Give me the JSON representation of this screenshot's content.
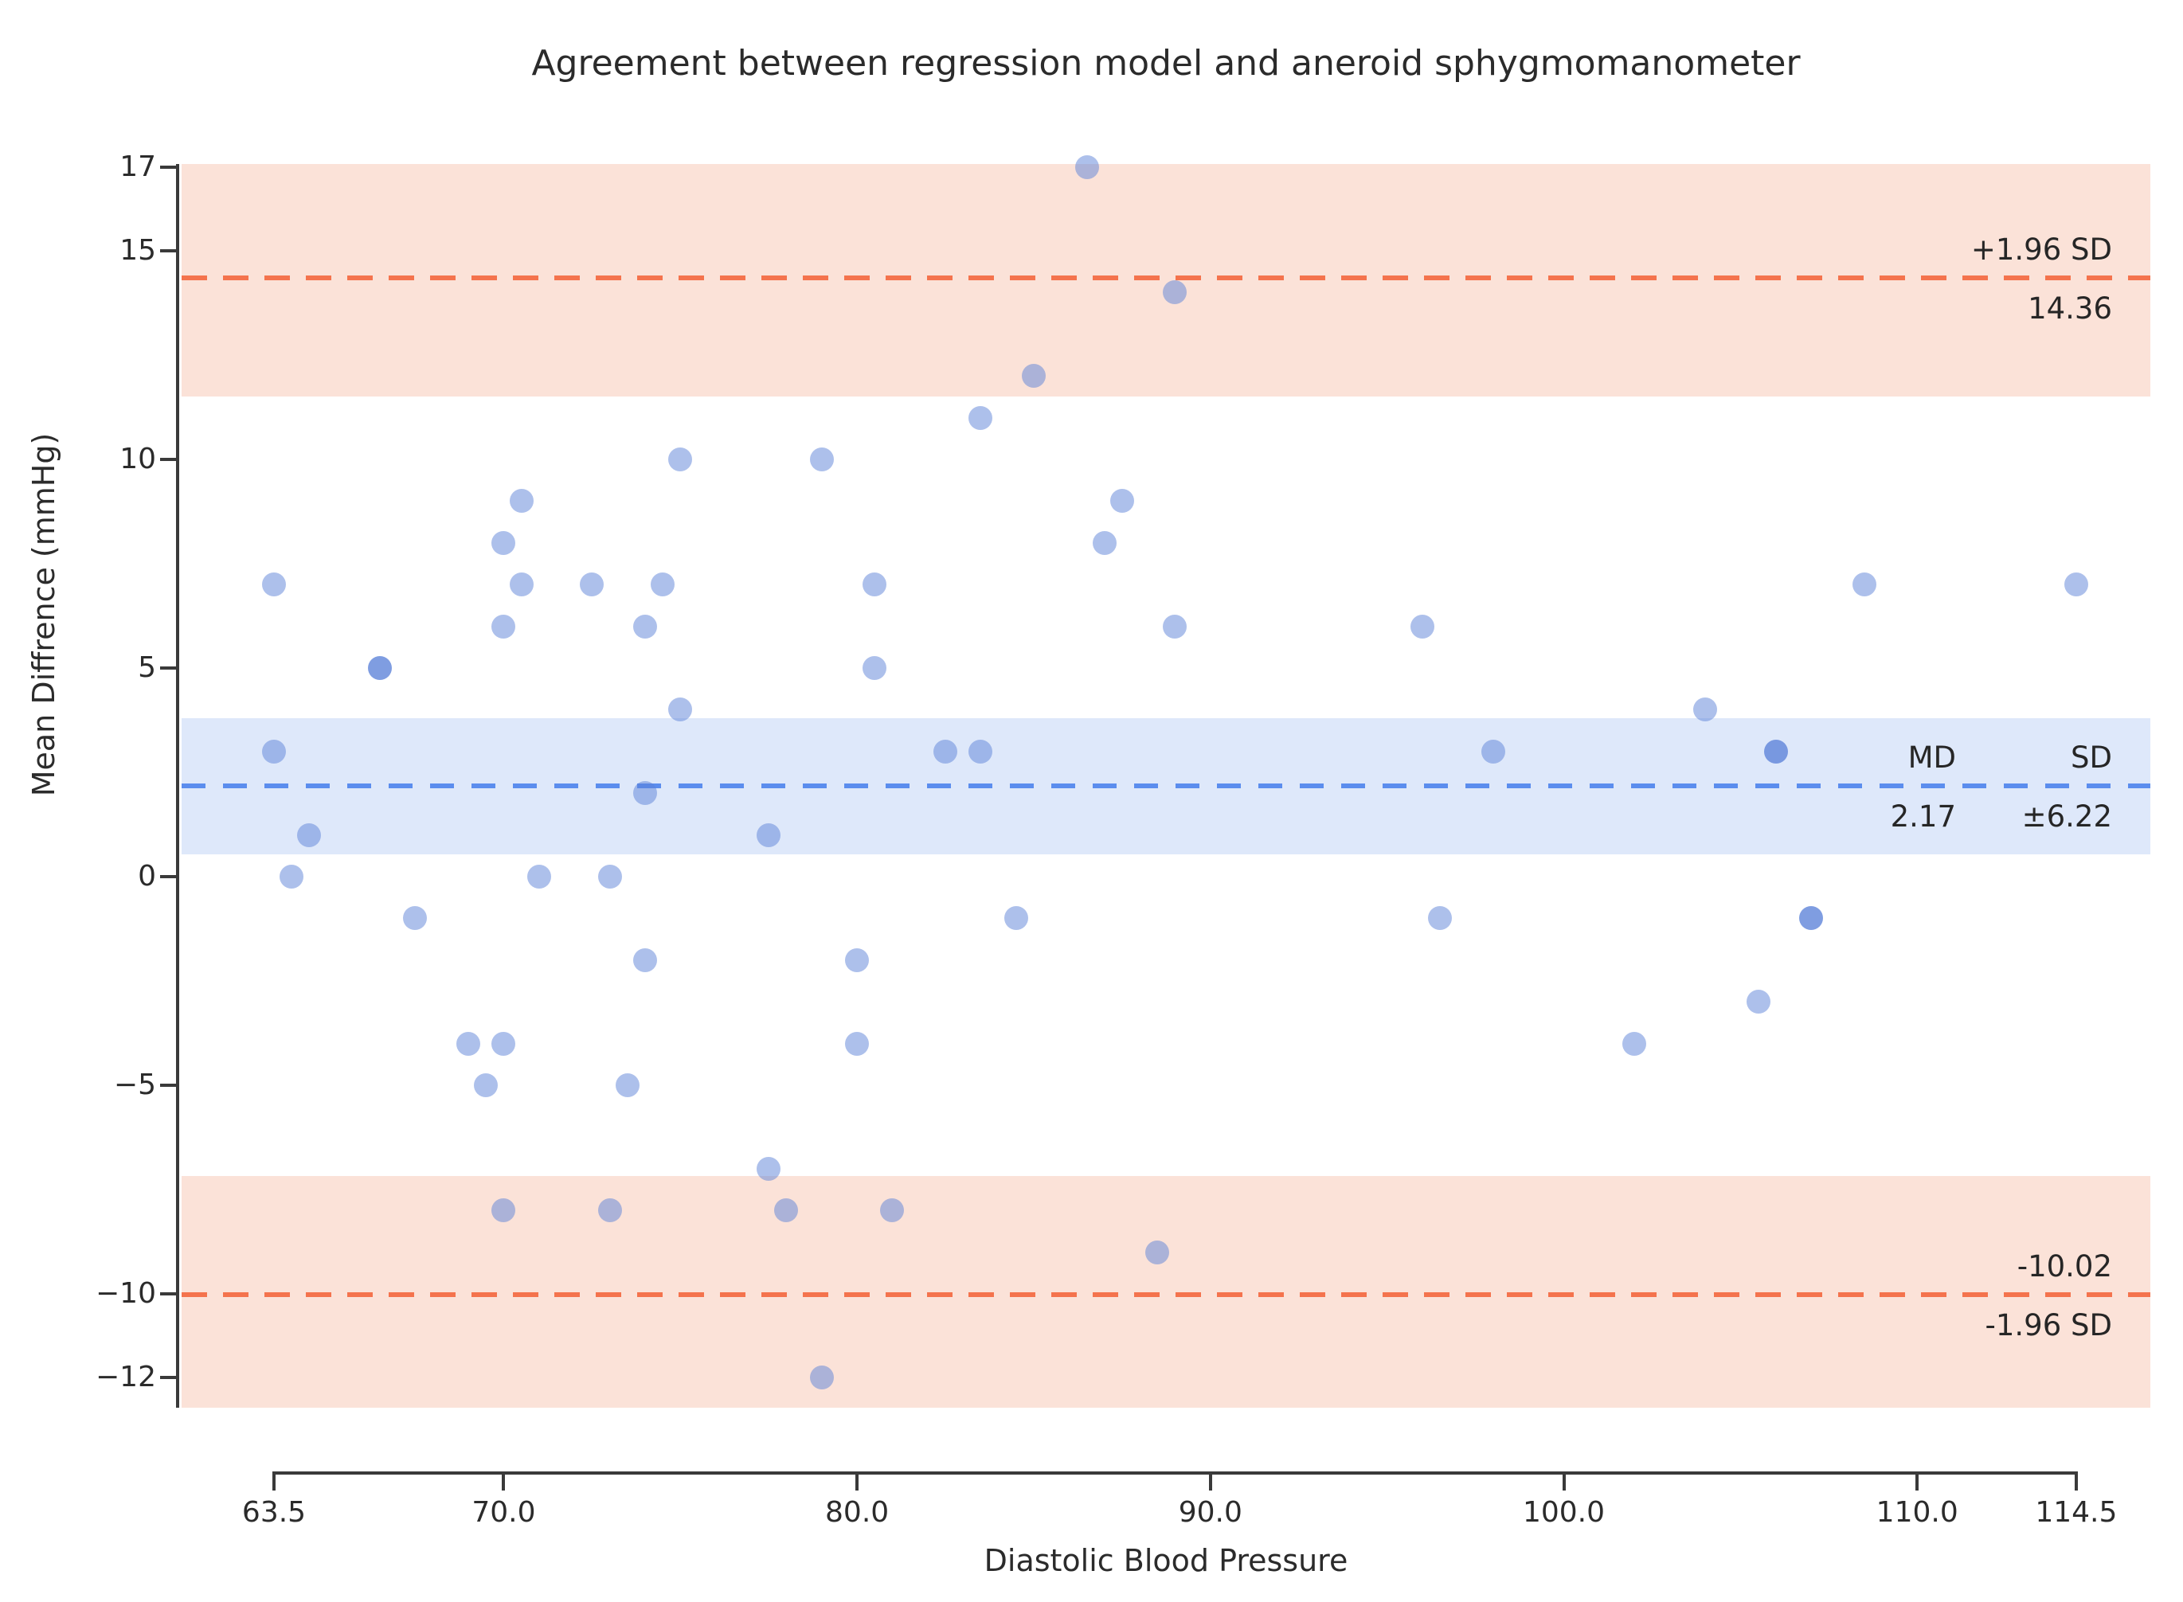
{
  "title": "Agreement between regression model and aneroid sphygmomanometer",
  "x_axis": {
    "label": "Diastolic Blood Pressure",
    "tick_labels": [
      "63.5",
      "70.0",
      "80.0",
      "90.0",
      "100.0",
      "110.0",
      "114.5"
    ]
  },
  "y_axis": {
    "label": "Mean Diffrence (mmHg)",
    "tick_labels": [
      "17",
      "15",
      "10",
      "5",
      "0",
      "−5",
      "−10",
      "−12"
    ]
  },
  "annotations": {
    "upper_loa_label": "+1.96 SD",
    "upper_loa_value": "14.36",
    "md_header": "MD",
    "sd_header": "SD",
    "md_value": "2.17",
    "sd_value": "±6.22",
    "lower_loa_value": "-10.02",
    "lower_loa_label": "-1.96 SD"
  },
  "colors": {
    "scatter": "#5b82d8",
    "loa_line": "#F4734D",
    "loa_band": "#FBE2D8",
    "mean_line": "#5B8DEE",
    "mean_band": "#DEE8FA",
    "axis": "#3a3a3a",
    "text": "#262626"
  },
  "chart_data": {
    "type": "scatter",
    "title": "Agreement between regression model and aneroid sphygmomanometer",
    "xlabel": "Diastolic Blood Pressure",
    "ylabel": "Mean Diffrence (mmHg)",
    "xlim": [
      60.9,
      116.6
    ],
    "ylim": [
      -12.8,
      17.1
    ],
    "x_ticks": [
      63.5,
      70,
      80,
      90,
      100,
      110,
      114.5
    ],
    "y_ticks": [
      17,
      15,
      10,
      5,
      0,
      -5,
      -10,
      -12
    ],
    "mean_difference": 2.17,
    "sd": 6.22,
    "upper_loa": 14.36,
    "lower_loa": -10.02,
    "loa_ci_half_width": 2.85,
    "mean_ci_half_width": 1.63,
    "grid": false,
    "points": [
      {
        "x": 63.5,
        "y": 7
      },
      {
        "x": 63.5,
        "y": 3
      },
      {
        "x": 64.5,
        "y": 1
      },
      {
        "x": 64,
        "y": 0
      },
      {
        "x": 66.5,
        "y": 5,
        "dark": true
      },
      {
        "x": 67.5,
        "y": -1
      },
      {
        "x": 70,
        "y": 8
      },
      {
        "x": 70.5,
        "y": 9
      },
      {
        "x": 70.5,
        "y": 7
      },
      {
        "x": 70,
        "y": 6
      },
      {
        "x": 71,
        "y": 0
      },
      {
        "x": 69,
        "y": -4
      },
      {
        "x": 70,
        "y": -4
      },
      {
        "x": 69.5,
        "y": -5
      },
      {
        "x": 70,
        "y": -8
      },
      {
        "x": 72.5,
        "y": 7
      },
      {
        "x": 73,
        "y": 0
      },
      {
        "x": 73.5,
        "y": -5
      },
      {
        "x": 73,
        "y": -8
      },
      {
        "x": 74.5,
        "y": 7
      },
      {
        "x": 74,
        "y": 6
      },
      {
        "x": 74,
        "y": 2
      },
      {
        "x": 74,
        "y": -2
      },
      {
        "x": 75,
        "y": 10
      },
      {
        "x": 75,
        "y": 4
      },
      {
        "x": 77.5,
        "y": 1
      },
      {
        "x": 77.5,
        "y": -7
      },
      {
        "x": 78,
        "y": -8
      },
      {
        "x": 79,
        "y": 10
      },
      {
        "x": 79,
        "y": -12
      },
      {
        "x": 80.5,
        "y": 7
      },
      {
        "x": 80.5,
        "y": 5
      },
      {
        "x": 80,
        "y": -2
      },
      {
        "x": 80,
        "y": -4
      },
      {
        "x": 81,
        "y": -8
      },
      {
        "x": 82.5,
        "y": 3
      },
      {
        "x": 83.5,
        "y": 3
      },
      {
        "x": 83.5,
        "y": 11
      },
      {
        "x": 85,
        "y": 12
      },
      {
        "x": 84.5,
        "y": -1
      },
      {
        "x": 86.5,
        "y": 17
      },
      {
        "x": 87.5,
        "y": 9
      },
      {
        "x": 87,
        "y": 8
      },
      {
        "x": 89,
        "y": 14
      },
      {
        "x": 89,
        "y": 6
      },
      {
        "x": 88.5,
        "y": -9
      },
      {
        "x": 96,
        "y": 6
      },
      {
        "x": 96.5,
        "y": -1
      },
      {
        "x": 98,
        "y": 3
      },
      {
        "x": 102,
        "y": -4
      },
      {
        "x": 104,
        "y": 4
      },
      {
        "x": 105.5,
        "y": -3
      },
      {
        "x": 106,
        "y": 3,
        "dark": true
      },
      {
        "x": 107,
        "y": -1,
        "dark": true
      },
      {
        "x": 108.5,
        "y": 7
      },
      {
        "x": 114.5,
        "y": 7
      }
    ]
  }
}
